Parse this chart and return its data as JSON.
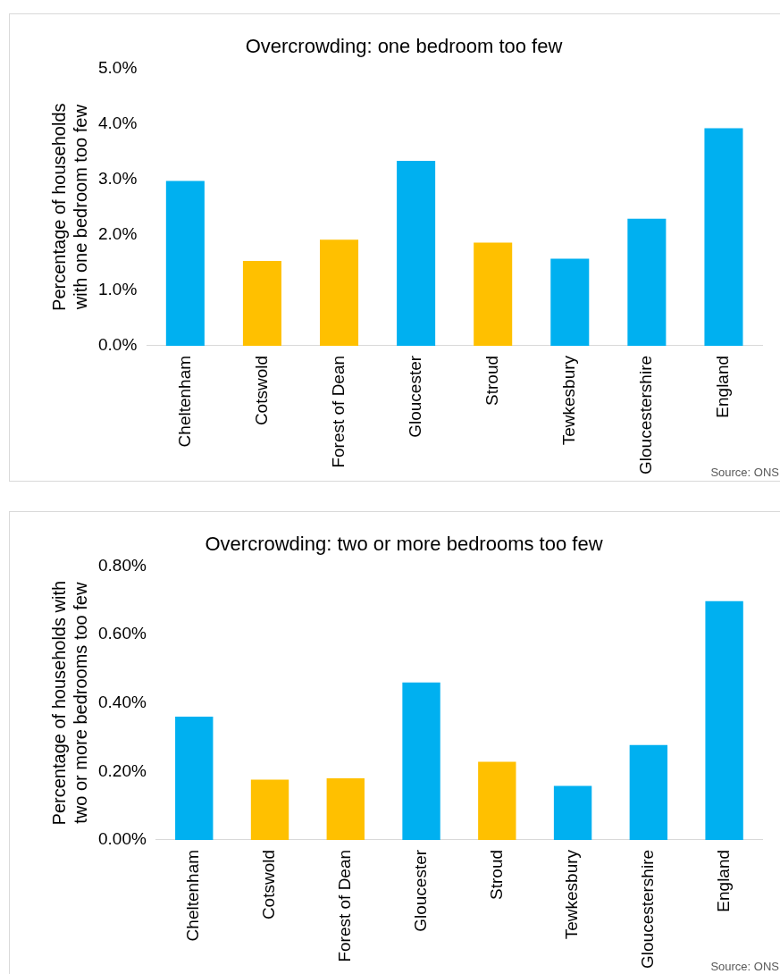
{
  "chart_data": [
    {
      "type": "bar",
      "title": "Overcrowding: one bedroom too few",
      "ylabel": "Percentage of households with one bedroom too few",
      "categories": [
        "Cheltenham",
        "Cotswold",
        "Forest of Dean",
        "Gloucester",
        "Stroud",
        "Tewkesbury",
        "Gloucestershire",
        "England"
      ],
      "values": [
        2.97,
        1.53,
        1.91,
        3.33,
        1.86,
        1.57,
        2.29,
        3.92
      ],
      "colors": [
        "#00b0f0",
        "#ffc000",
        "#ffc000",
        "#00b0f0",
        "#ffc000",
        "#00b0f0",
        "#00b0f0",
        "#00b0f0"
      ],
      "ylim": [
        0,
        5
      ],
      "yticks": [
        {
          "value": 0,
          "label": "0.0%"
        },
        {
          "value": 1,
          "label": "1.0%"
        },
        {
          "value": 2,
          "label": "2.0%"
        },
        {
          "value": 3,
          "label": "3.0%"
        },
        {
          "value": 4,
          "label": "4.0%"
        },
        {
          "value": 5,
          "label": "5.0%"
        }
      ],
      "grid": false,
      "legend": false,
      "annotations": [
        "Source: ONS"
      ]
    },
    {
      "type": "bar",
      "title": "Overcrowding: two or more bedrooms too few",
      "ylabel": "Percentage of households with two or more bedrooms too few",
      "categories": [
        "Cheltenham",
        "Cotswold",
        "Forest of Dean",
        "Gloucester",
        "Stroud",
        "Tewkesbury",
        "Gloucestershire",
        "England"
      ],
      "values": [
        0.36,
        0.176,
        0.18,
        0.46,
        0.228,
        0.158,
        0.277,
        0.697
      ],
      "colors": [
        "#00b0f0",
        "#ffc000",
        "#ffc000",
        "#00b0f0",
        "#ffc000",
        "#00b0f0",
        "#00b0f0",
        "#00b0f0"
      ],
      "ylim": [
        0,
        0.8
      ],
      "yticks": [
        {
          "value": 0,
          "label": "0.00%"
        },
        {
          "value": 0.2,
          "label": "0.20%"
        },
        {
          "value": 0.4,
          "label": "0.40%"
        },
        {
          "value": 0.6,
          "label": "0.60%"
        },
        {
          "value": 0.8,
          "label": "0.80%"
        }
      ],
      "grid": false,
      "legend": false,
      "annotations": [
        "Source: ONS"
      ]
    }
  ]
}
